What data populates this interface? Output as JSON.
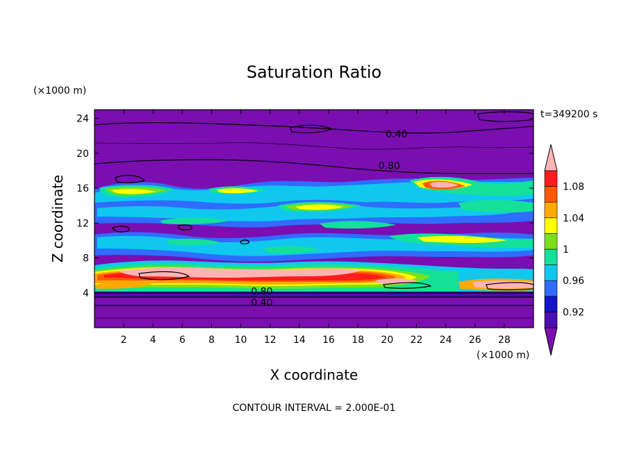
{
  "chart_data": {
    "type": "heatmap",
    "title": "Saturation Ratio",
    "xlabel": "X coordinate",
    "ylabel": "Z coordinate",
    "x_unit": "(×1000 m)",
    "y_unit": "(×1000 m)",
    "time_label": "t=349200 s",
    "footer": "CONTOUR INTERVAL = 2.000E-01",
    "xlim": [
      0,
      30
    ],
    "ylim": [
      0,
      25
    ],
    "x_ticks": [
      2,
      4,
      6,
      8,
      10,
      12,
      14,
      16,
      18,
      20,
      22,
      24,
      26,
      28
    ],
    "x_tick_labels": [
      "2",
      "4",
      "6",
      "8",
      "10",
      "12",
      "14",
      "16",
      "18",
      "20",
      "22",
      "24",
      "26",
      "28"
    ],
    "y_ticks": [
      4,
      8,
      12,
      16,
      20,
      24
    ],
    "y_tick_labels": [
      "4",
      "8",
      "12",
      "16",
      "20",
      "24"
    ],
    "colorbar": {
      "labels": [
        {
          "value": 1.08,
          "text": "1.08"
        },
        {
          "value": 1.04,
          "text": "1.04"
        },
        {
          "value": 1.0,
          "text": "1"
        },
        {
          "value": 0.96,
          "text": "0.96"
        },
        {
          "value": 0.92,
          "text": "0.92"
        }
      ],
      "levels": [
        0.9,
        0.92,
        0.94,
        0.96,
        0.98,
        1.0,
        1.02,
        1.04,
        1.06,
        1.08,
        1.1
      ],
      "colors": [
        "#7a0eb0",
        "#4b0fae",
        "#1414c8",
        "#2f6cff",
        "#10c8ee",
        "#14e09a",
        "#7ae01c",
        "#ffff00",
        "#ffaa00",
        "#ff5a00",
        "#ff1c1c",
        "#ffb4b4"
      ],
      "extend": "both"
    },
    "contour_labels": [
      {
        "text": "0.40",
        "x": 19.9,
        "z": 21.8
      },
      {
        "text": "0.80",
        "x": 19.4,
        "z": 18.2
      },
      {
        "text": "0.80",
        "x": 10.7,
        "z": 3.8
      },
      {
        "text": "0.40",
        "x": 10.7,
        "z": 2.5
      }
    ],
    "field_bands": [
      {
        "z": [
          24.0,
          25.0
        ],
        "value": 0.2
      },
      {
        "z": [
          22.0,
          24.0
        ],
        "value": 0.3
      },
      {
        "z": [
          19.0,
          22.0
        ],
        "value": 0.6
      },
      {
        "z": [
          17.5,
          19.0
        ],
        "value": 0.85
      },
      {
        "z": [
          14.8,
          17.0
        ],
        "value": 0.98
      },
      {
        "z": [
          12.5,
          14.8
        ],
        "value": 0.96
      },
      {
        "z": [
          8.7,
          11.2
        ],
        "value": 0.96
      },
      {
        "z": [
          6.5,
          8.7
        ],
        "value": 0.94
      },
      {
        "z": [
          5.0,
          6.8
        ],
        "value": 1.08
      },
      {
        "z": [
          4.0,
          5.0
        ],
        "value": 1.02
      },
      {
        "z": [
          0.0,
          4.0
        ],
        "value": 0.5
      }
    ],
    "features": [
      {
        "x": 23.8,
        "z": 16.3,
        "value": 1.09
      },
      {
        "x": 15.5,
        "z": 14.3,
        "value": 1.04
      },
      {
        "x": 9.0,
        "z": 6.0,
        "value": 1.1
      },
      {
        "x": 2.5,
        "z": 15.5,
        "value": 1.03
      },
      {
        "x": 25.0,
        "z": 10.0,
        "value": 1.02
      },
      {
        "x": 5.5,
        "z": 6.2,
        "value": 1.1
      },
      {
        "x": 13.5,
        "z": 5.7,
        "value": 1.1
      }
    ]
  }
}
